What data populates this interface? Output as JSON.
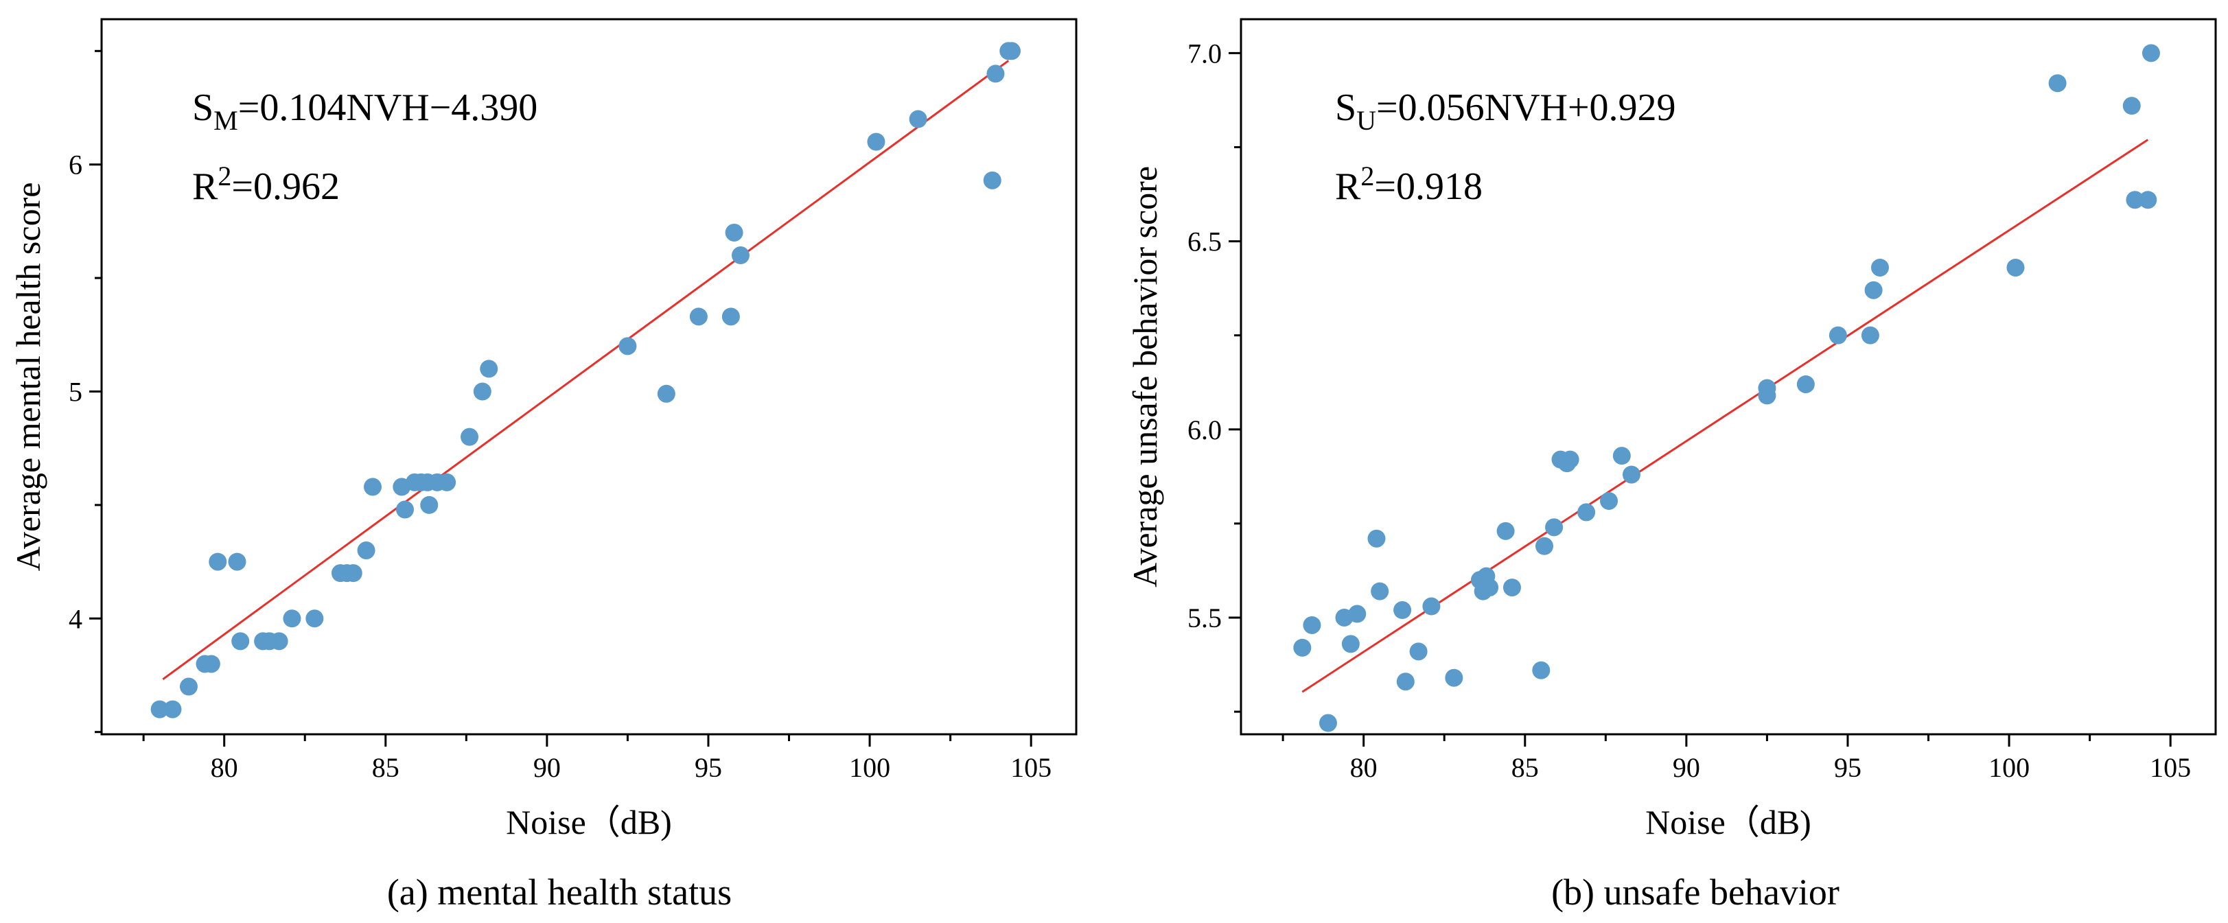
{
  "colors": {
    "point": "#5b9bcb",
    "fit_line": "#e8302a",
    "axis": "#000000"
  },
  "chart_data": [
    {
      "type": "scatter",
      "caption": "(a) mental health status",
      "xlabel": "Noise（dB)",
      "ylabel": "Average mental health score",
      "xlim": [
        76.2,
        106.4
      ],
      "ylim": [
        3.49,
        6.64
      ],
      "x_ticks": [
        80,
        85,
        90,
        95,
        100,
        105
      ],
      "x_tick_labels": [
        "80",
        "85",
        "90",
        "95",
        "100",
        "105"
      ],
      "x_minor_ticks": [
        77.5,
        82.5,
        87.5,
        92.5,
        97.5,
        102.5
      ],
      "y_ticks": [
        4,
        5,
        6
      ],
      "y_tick_labels": [
        "4",
        "5",
        "6"
      ],
      "y_minor_ticks": [
        3.5,
        4.5,
        5.5,
        6.5
      ],
      "fit": {
        "slope": 0.104,
        "intercept": -4.39,
        "x_range": [
          78.1,
          104.3
        ],
        "equation_parts": {
          "base": "S",
          "sub": "M",
          "rest": "=0.104NVH−4.390"
        },
        "r2_parts": {
          "base": "R",
          "sup": "2",
          "rest": "=0.962"
        }
      },
      "points": [
        {
          "x": 78.0,
          "y": 3.6
        },
        {
          "x": 78.4,
          "y": 3.6
        },
        {
          "x": 78.9,
          "y": 3.7
        },
        {
          "x": 79.4,
          "y": 3.8
        },
        {
          "x": 79.6,
          "y": 3.8
        },
        {
          "x": 79.8,
          "y": 4.25
        },
        {
          "x": 80.4,
          "y": 4.25
        },
        {
          "x": 80.5,
          "y": 3.9
        },
        {
          "x": 81.2,
          "y": 3.9
        },
        {
          "x": 81.4,
          "y": 3.9
        },
        {
          "x": 81.7,
          "y": 3.9
        },
        {
          "x": 82.1,
          "y": 4.0
        },
        {
          "x": 82.8,
          "y": 4.0
        },
        {
          "x": 83.6,
          "y": 4.2
        },
        {
          "x": 83.8,
          "y": 4.2
        },
        {
          "x": 84.0,
          "y": 4.2
        },
        {
          "x": 84.4,
          "y": 4.3
        },
        {
          "x": 84.6,
          "y": 4.58
        },
        {
          "x": 85.5,
          "y": 4.58
        },
        {
          "x": 85.6,
          "y": 4.48
        },
        {
          "x": 85.9,
          "y": 4.6
        },
        {
          "x": 86.1,
          "y": 4.6
        },
        {
          "x": 86.3,
          "y": 4.6
        },
        {
          "x": 86.35,
          "y": 4.5
        },
        {
          "x": 86.6,
          "y": 4.6
        },
        {
          "x": 86.9,
          "y": 4.6
        },
        {
          "x": 87.6,
          "y": 4.8
        },
        {
          "x": 88.0,
          "y": 5.0
        },
        {
          "x": 88.2,
          "y": 5.1
        },
        {
          "x": 92.5,
          "y": 5.2
        },
        {
          "x": 93.7,
          "y": 4.99
        },
        {
          "x": 94.7,
          "y": 5.33
        },
        {
          "x": 95.7,
          "y": 5.33
        },
        {
          "x": 95.8,
          "y": 5.7
        },
        {
          "x": 96.0,
          "y": 5.6
        },
        {
          "x": 100.2,
          "y": 6.1
        },
        {
          "x": 101.5,
          "y": 6.2
        },
        {
          "x": 103.8,
          "y": 5.93
        },
        {
          "x": 103.9,
          "y": 6.4
        },
        {
          "x": 104.3,
          "y": 6.5
        },
        {
          "x": 104.4,
          "y": 6.5
        }
      ]
    },
    {
      "type": "scatter",
      "caption": "(b) unsafe behavior",
      "xlabel": "Noise（dB)",
      "ylabel": "Average unsafe behavior score",
      "xlim": [
        76.2,
        106.4
      ],
      "ylim": [
        5.19,
        7.09
      ],
      "x_ticks": [
        80,
        85,
        90,
        95,
        100,
        105
      ],
      "x_tick_labels": [
        "80",
        "85",
        "90",
        "95",
        "100",
        "105"
      ],
      "x_minor_ticks": [
        77.5,
        82.5,
        87.5,
        92.5,
        97.5,
        102.5
      ],
      "y_ticks": [
        5.5,
        6.0,
        6.5,
        7.0
      ],
      "y_tick_labels": [
        "5.5",
        "6.0",
        "6.5",
        "7.0"
      ],
      "y_minor_ticks": [
        5.25,
        5.75,
        6.25,
        6.75
      ],
      "fit": {
        "slope": 0.056,
        "intercept": 0.929,
        "x_range": [
          78.1,
          104.3
        ],
        "equation_parts": {
          "base": "S",
          "sub": "U",
          "rest": "=0.056NVH+0.929"
        },
        "r2_parts": {
          "base": "R",
          "sup": "2",
          "rest": "=0.918"
        }
      },
      "points": [
        {
          "x": 78.1,
          "y": 5.42
        },
        {
          "x": 78.4,
          "y": 5.48
        },
        {
          "x": 78.9,
          "y": 5.22
        },
        {
          "x": 79.4,
          "y": 5.5
        },
        {
          "x": 79.6,
          "y": 5.43
        },
        {
          "x": 79.8,
          "y": 5.51
        },
        {
          "x": 80.4,
          "y": 5.71
        },
        {
          "x": 80.5,
          "y": 5.57
        },
        {
          "x": 81.2,
          "y": 5.52
        },
        {
          "x": 81.3,
          "y": 5.33
        },
        {
          "x": 81.7,
          "y": 5.41
        },
        {
          "x": 82.1,
          "y": 5.53
        },
        {
          "x": 82.8,
          "y": 5.34
        },
        {
          "x": 83.6,
          "y": 5.6
        },
        {
          "x": 83.7,
          "y": 5.57
        },
        {
          "x": 83.8,
          "y": 5.61
        },
        {
          "x": 83.9,
          "y": 5.58
        },
        {
          "x": 84.4,
          "y": 5.73
        },
        {
          "x": 84.6,
          "y": 5.58
        },
        {
          "x": 85.5,
          "y": 5.36
        },
        {
          "x": 85.6,
          "y": 5.69
        },
        {
          "x": 85.9,
          "y": 5.74
        },
        {
          "x": 86.1,
          "y": 5.92
        },
        {
          "x": 86.3,
          "y": 5.91
        },
        {
          "x": 86.4,
          "y": 5.92
        },
        {
          "x": 86.9,
          "y": 5.78
        },
        {
          "x": 87.6,
          "y": 5.81
        },
        {
          "x": 88.0,
          "y": 5.93
        },
        {
          "x": 88.3,
          "y": 5.88
        },
        {
          "x": 92.5,
          "y": 6.11
        },
        {
          "x": 92.5,
          "y": 6.09
        },
        {
          "x": 93.7,
          "y": 6.12
        },
        {
          "x": 94.7,
          "y": 6.25
        },
        {
          "x": 95.7,
          "y": 6.25
        },
        {
          "x": 95.8,
          "y": 6.37
        },
        {
          "x": 96.0,
          "y": 6.43
        },
        {
          "x": 100.2,
          "y": 6.43
        },
        {
          "x": 101.5,
          "y": 6.92
        },
        {
          "x": 103.8,
          "y": 6.86
        },
        {
          "x": 103.9,
          "y": 6.61
        },
        {
          "x": 104.3,
          "y": 6.61
        },
        {
          "x": 104.4,
          "y": 7.0
        }
      ]
    }
  ]
}
